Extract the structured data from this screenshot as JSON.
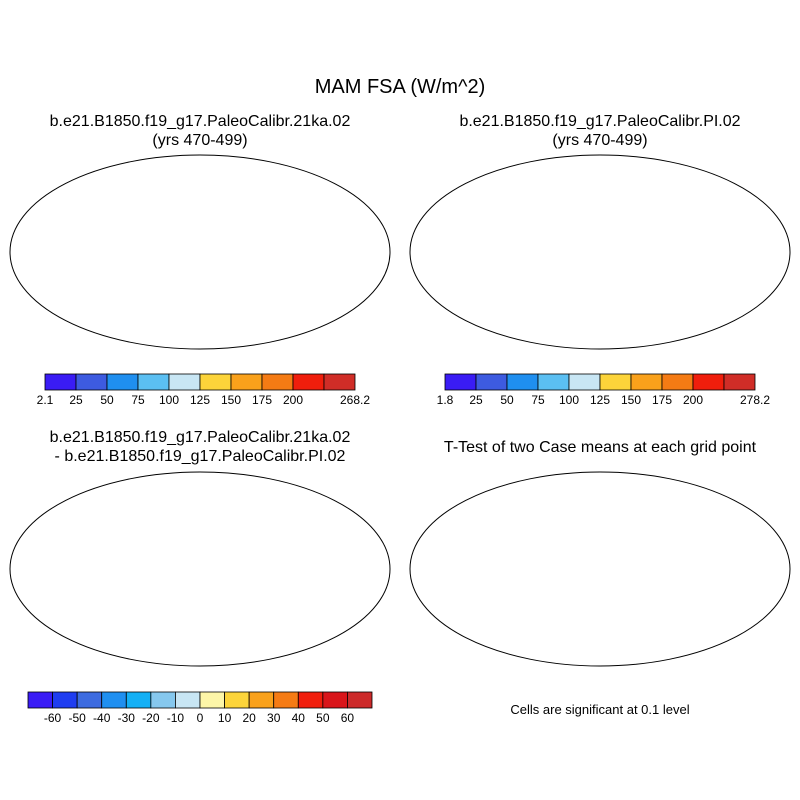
{
  "figure_title": "MAM FSA (W/m^2)",
  "panels": {
    "case1": {
      "title_line1": "b.e21.B1850.f19_g17.PaleoCalibr.21ka.02",
      "title_line2": "(yrs 470-499)"
    },
    "case2": {
      "title_line1": "b.e21.B1850.f19_g17.PaleoCalibr.PI.02",
      "title_line2": "(yrs 470-499)"
    },
    "diff": {
      "title_line1": "b.e21.B1850.f19_g17.PaleoCalibr.21ka.02",
      "title_line2": "- b.e21.B1850.f19_g17.PaleoCalibr.PI.02"
    },
    "ttest": {
      "title_line1": "T-Test of two Case means at each grid point",
      "note": "Cells are significant at 0.1 level"
    }
  },
  "colorbars": {
    "case1": {
      "labels": [
        "2.1",
        "25",
        "50",
        "75",
        "100",
        "125",
        "150",
        "175",
        "200",
        "268.2"
      ],
      "colors": [
        "#3a1cf5",
        "#3d5be0",
        "#1f8ff0",
        "#5bbff2",
        "#c8e6f4",
        "#fcd43a",
        "#f9a11b",
        "#f57b14",
        "#f01e0c",
        "#d02d27"
      ]
    },
    "case2": {
      "labels": [
        "1.8",
        "25",
        "50",
        "75",
        "100",
        "125",
        "150",
        "175",
        "200",
        "278.2"
      ],
      "colors": [
        "#3a1cf5",
        "#3d5be0",
        "#1f8ff0",
        "#5bbff2",
        "#c8e6f4",
        "#fcd43a",
        "#f9a11b",
        "#f57b14",
        "#f01e0c",
        "#d02d27"
      ]
    },
    "diff": {
      "labels": [
        "-60",
        "-50",
        "-40",
        "-30",
        "-20",
        "-10",
        "0",
        "10",
        "20",
        "30",
        "40",
        "50",
        "60"
      ],
      "colors": [
        "#3a1cf5",
        "#1f3df0",
        "#3d6be0",
        "#1f8ff0",
        "#14b0f5",
        "#86c8ee",
        "#c8e6f4",
        "#fdf6a8",
        "#fcd43a",
        "#f9a11b",
        "#f57b14",
        "#f01e0c",
        "#d9151a",
        "#cc2a2a"
      ]
    }
  },
  "map_fills": {
    "ocean": "#ffffff",
    "case_land_warm": "#e2261d",
    "case_land_hot": "#c8322b",
    "case_land_mid": "#f5a21c",
    "case_high_lat": "#3b6fe3",
    "case_antarctica": "#3a1cf5",
    "diff_neutral": "#fdf3a3",
    "diff_light": "#bcdff2",
    "diff_cold": "#3a2ee8",
    "diff_warm": "#f5a21c",
    "significant": "#ee0f0a"
  }
}
